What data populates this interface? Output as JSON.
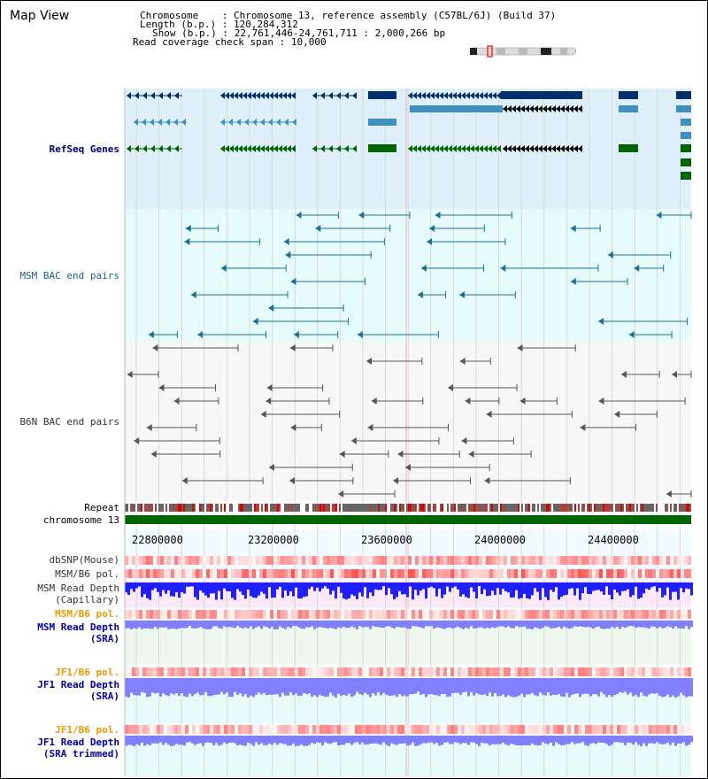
{
  "title": "Map View",
  "info": {
    "chromosome_label": "Chromosome",
    "chromosome_value": "Chromosome 13, reference assembly (C57BL/6J) (Build 37)",
    "length_label": "Length (b.p.)",
    "length_value": "120,284,312",
    "show_label": "Show (b.p.)",
    "show_value": "22,761,446-24,761,711 : 2,000,266 bp",
    "coverage_label": "Read coverage check span",
    "coverage_value": "10,000"
  },
  "tracks": {
    "refseq": "RefSeq Genes",
    "msm_bac": "MSM BAC end pairs",
    "b6n_bac": "B6N BAC end pairs",
    "repeat": "Repeat",
    "chromosome": "chromosome 13",
    "dbsnp": "dbSNP(Mouse)",
    "msm_b6_pol_1": "MSM/B6 pol.",
    "msm_read_depth_cap_1": "MSM Read Depth",
    "msm_read_depth_cap_2": "(Capillary)",
    "msm_b6_pol_2": "MSM/B6 pol.",
    "msm_read_depth_sra_1": "MSM Read Depth",
    "msm_read_depth_sra_2": "(SRA)",
    "jf1_b6_pol_1": "JF1/B6 pol.",
    "jf1_read_depth_1": "JF1 Read Depth",
    "jf1_read_depth_2": "(SRA)",
    "jf1_b6_pol_2": "JF1/B6 pol.",
    "jf1_read_depth_trim_1": "JF1 Read Depth",
    "jf1_read_depth_trim_2": "(SRA trimmed)"
  },
  "axis": {
    "ticks": [
      "22800000",
      "23200000",
      "23600000",
      "24000000",
      "24400000"
    ]
  },
  "colors": {
    "refseq_bg": "#dff0fa",
    "msm_bac_bg": "#e6fbfb",
    "b6n_bac_bg": "#f7f7f7",
    "gene_dark": "#00306a",
    "gene_mid": "#3f8fbf",
    "gene_green": "#006400",
    "bac_teal": "#1f6f8f",
    "bac_gray": "#555555",
    "depth_blue": "#2020ff",
    "depth_light": "#8080ff",
    "pol_red": "#f06060",
    "chrom_green": "#006400"
  }
}
